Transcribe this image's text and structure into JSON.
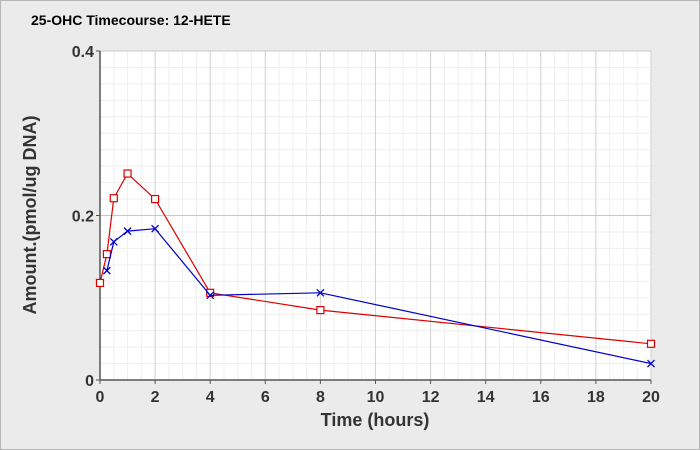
{
  "chart_data": {
    "type": "line",
    "title": "25-OHC Timecourse: 12-HETE",
    "xlabel": "Time (hours)",
    "ylabel": "Amount.(pmol/ug DNA)",
    "xlim": [
      0,
      20
    ],
    "ylim": [
      0,
      0.4
    ],
    "x_ticks": [
      "0",
      "2",
      "4",
      "6",
      "8",
      "10",
      "12",
      "14",
      "16",
      "18",
      "20"
    ],
    "y_ticks": [
      "0",
      "0.2",
      "0.4"
    ],
    "grid": true,
    "legend": "none",
    "series": [
      {
        "color": "#dd0000",
        "marker": "square",
        "points": [
          [
            0,
            0.118
          ],
          [
            0.25,
            0.153
          ],
          [
            0.5,
            0.221
          ],
          [
            1,
            0.251
          ],
          [
            2,
            0.22
          ],
          [
            4,
            0.106
          ],
          [
            8,
            0.085
          ],
          [
            20,
            0.044
          ]
        ]
      },
      {
        "color": "#0000c8",
        "marker": "x",
        "points": [
          [
            0.25,
            0.133
          ],
          [
            0.5,
            0.168
          ],
          [
            1,
            0.181
          ],
          [
            2,
            0.184
          ],
          [
            4,
            0.103
          ],
          [
            8,
            0.106
          ],
          [
            20,
            0.02
          ]
        ]
      }
    ]
  }
}
